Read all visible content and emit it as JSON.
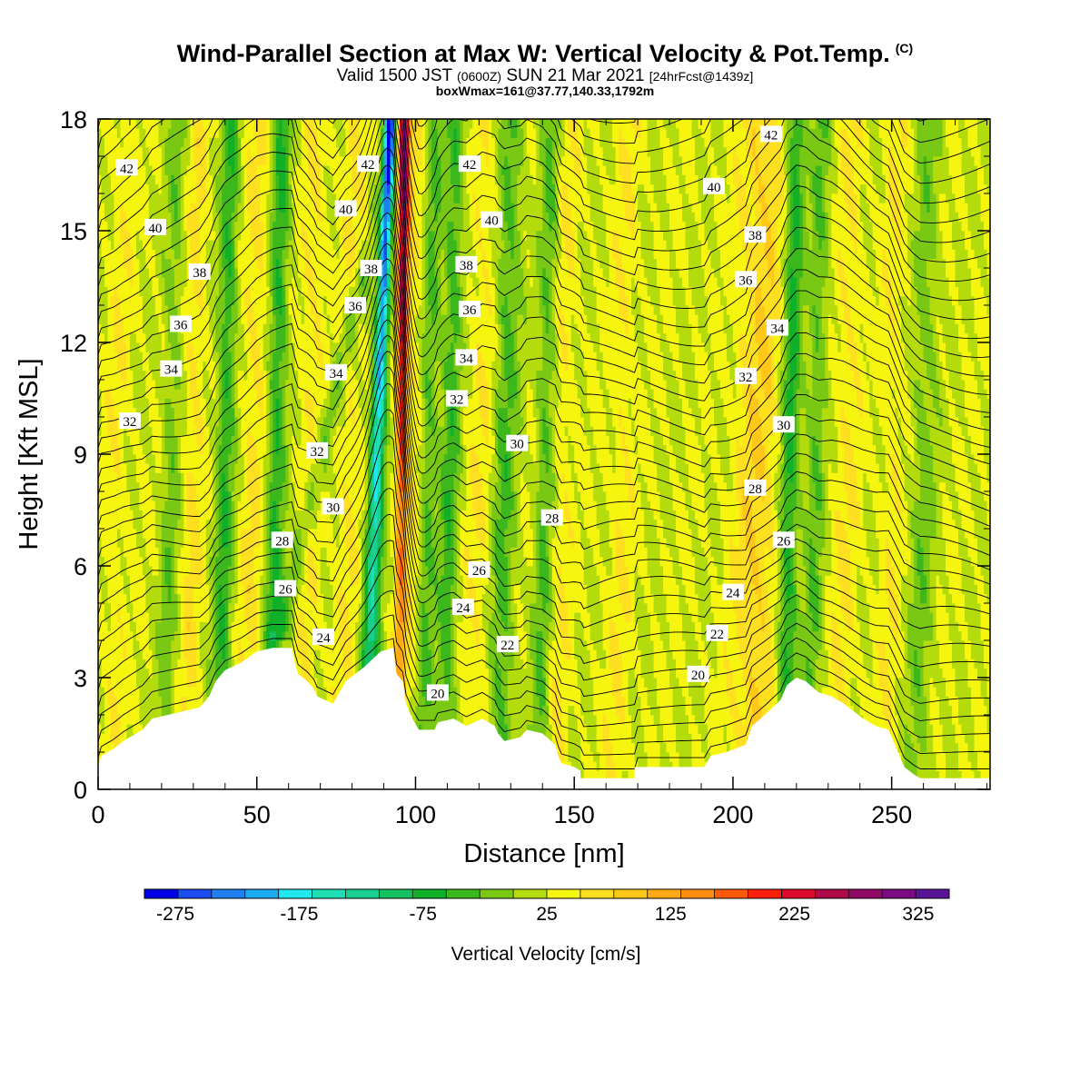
{
  "title": "Wind-Parallel Section at Max W: Vertical Velocity & Pot.Temp.",
  "copyright_mark": "(C)",
  "subtitle": {
    "valid": "Valid 1500 JST",
    "utc": "(0600Z)",
    "date": "SUN 21 Mar 2021",
    "forecast": "[24hrFcst@1439z]"
  },
  "subtitle2": "boxWmax=161@37.77,140.33,1792m",
  "chart_data": {
    "type": "heatmap",
    "xlabel": "Distance [nm]",
    "ylabel": "Height [Kft MSL]",
    "xlim": [
      0,
      281
    ],
    "ylim": [
      0,
      18
    ],
    "x_ticks": [
      0,
      50,
      100,
      150,
      200,
      250
    ],
    "y_ticks": [
      0,
      3,
      6,
      9,
      12,
      15,
      18
    ],
    "colorbar": {
      "label": "Vertical Velocity [cm/s]",
      "range": [
        -300,
        350
      ],
      "step": 25,
      "tick_values": [
        -275,
        -175,
        -75,
        25,
        125,
        225,
        325
      ],
      "colors": [
        "#0000e6",
        "#1a4cf0",
        "#1f7ff2",
        "#1eaaf0",
        "#20e8f0",
        "#1ce0b4",
        "#18d090",
        "#14c060",
        "#10b028",
        "#3cb81c",
        "#78c814",
        "#b4dc0c",
        "#f5f50f",
        "#ffe020",
        "#ffc818",
        "#ffaa14",
        "#ff8c10",
        "#ff5a0c",
        "#ff1e0a",
        "#dc0a28",
        "#b00a46",
        "#900a64",
        "#7a0a80",
        "#5a1496"
      ]
    },
    "terrain_kft": [
      [
        0,
        0.6
      ],
      [
        1,
        0.9
      ],
      [
        5,
        1.1
      ],
      [
        8,
        1.3
      ],
      [
        14,
        1.6
      ],
      [
        17,
        1.9
      ],
      [
        32,
        2.2
      ],
      [
        35,
        2.5
      ],
      [
        37,
        2.9
      ],
      [
        40,
        3.2
      ],
      [
        45,
        3.4
      ],
      [
        50,
        3.7
      ],
      [
        55,
        3.8
      ],
      [
        61,
        3.8
      ],
      [
        62,
        3.4
      ],
      [
        63,
        3.1
      ],
      [
        66,
        2.9
      ],
      [
        68,
        2.7
      ],
      [
        69,
        2.5
      ],
      [
        74,
        2.3
      ],
      [
        76,
        2.6
      ],
      [
        78,
        2.9
      ],
      [
        84,
        3.3
      ],
      [
        89,
        3.7
      ],
      [
        93,
        3.8
      ],
      [
        94,
        3.1
      ],
      [
        96,
        2.9
      ],
      [
        97,
        2.3
      ],
      [
        99,
        1.9
      ],
      [
        101,
        1.6
      ],
      [
        106,
        1.6
      ],
      [
        107,
        1.8
      ],
      [
        112,
        1.9
      ],
      [
        116,
        1.7
      ],
      [
        121,
        1.9
      ],
      [
        125,
        1.7
      ],
      [
        126,
        1.5
      ],
      [
        128,
        1.3
      ],
      [
        133,
        1.4
      ],
      [
        135,
        1.6
      ],
      [
        140,
        1.5
      ],
      [
        144,
        1.2
      ],
      [
        145,
        0.9
      ],
      [
        146,
        0.7
      ],
      [
        150,
        0.6
      ],
      [
        152,
        0.5
      ],
      [
        152,
        0.3
      ],
      [
        169,
        0.3
      ],
      [
        169,
        0.6
      ],
      [
        191,
        0.6
      ],
      [
        193,
        0.9
      ],
      [
        198,
        1.0
      ],
      [
        204,
        1.2
      ],
      [
        206,
        1.7
      ],
      [
        210,
        2.0
      ],
      [
        215,
        2.4
      ],
      [
        217,
        2.8
      ],
      [
        220,
        3.0
      ],
      [
        223,
        2.9
      ],
      [
        227,
        2.6
      ],
      [
        231,
        2.5
      ],
      [
        235,
        2.3
      ],
      [
        238,
        2.1
      ],
      [
        241,
        1.9
      ],
      [
        245,
        1.7
      ],
      [
        249,
        1.6
      ],
      [
        251,
        1.2
      ],
      [
        253,
        0.8
      ],
      [
        254,
        0.6
      ],
      [
        257,
        0.4
      ],
      [
        259,
        0.3
      ],
      [
        281,
        0.3
      ]
    ],
    "updraft_bands": [
      {
        "x": 6,
        "w": 4,
        "s": 0.22
      },
      {
        "x": 30,
        "w": 3,
        "s": 0.35
      },
      {
        "x": 49,
        "w": 4,
        "s": 0.35
      },
      {
        "x": 67,
        "w": 4,
        "s": 0.3
      },
      {
        "x": 79,
        "w": 4,
        "s": 0.28
      },
      {
        "x": 99,
        "w": 5,
        "s": 0.28
      },
      {
        "x": 121,
        "w": 5,
        "s": 0.28
      },
      {
        "x": 146,
        "w": 4,
        "s": 0.25
      },
      {
        "x": 165,
        "w": 4,
        "s": 0.25
      },
      {
        "x": 208,
        "w": 7,
        "s": 0.55
      },
      {
        "x": 236,
        "w": 4,
        "s": 0.3
      },
      {
        "x": 250,
        "w": 4,
        "s": 0.22
      }
    ],
    "downdraft_bands": [
      {
        "x": 23,
        "w": 3,
        "s": 0.35
      },
      {
        "x": 40,
        "w": 3,
        "s": 0.65
      },
      {
        "x": 56,
        "w": 3,
        "s": 0.7
      },
      {
        "x": 104,
        "w": 3,
        "s": 0.55
      },
      {
        "x": 111,
        "w": 3,
        "s": 0.6
      },
      {
        "x": 128,
        "w": 4,
        "s": 0.55
      },
      {
        "x": 141,
        "w": 3,
        "s": 0.5
      },
      {
        "x": 218,
        "w": 3,
        "s": 0.8
      },
      {
        "x": 226,
        "w": 3,
        "s": 0.45
      },
      {
        "x": 260,
        "w": 4,
        "s": 0.35
      }
    ],
    "jet_pair": {
      "down_x": 90,
      "up_x": 95
    },
    "isentrope_labels": [
      {
        "x": 9,
        "y": 16.7,
        "text": "42"
      },
      {
        "x": 18,
        "y": 15.1,
        "text": "40"
      },
      {
        "x": 32,
        "y": 13.9,
        "text": "38"
      },
      {
        "x": 26,
        "y": 12.5,
        "text": "36"
      },
      {
        "x": 23,
        "y": 11.3,
        "text": "34"
      },
      {
        "x": 10,
        "y": 9.9,
        "text": "32"
      },
      {
        "x": 85,
        "y": 16.8,
        "text": "42"
      },
      {
        "x": 78,
        "y": 15.6,
        "text": "40"
      },
      {
        "x": 86,
        "y": 14.0,
        "text": "38"
      },
      {
        "x": 81,
        "y": 13.0,
        "text": "36"
      },
      {
        "x": 75,
        "y": 11.2,
        "text": "34"
      },
      {
        "x": 69,
        "y": 9.1,
        "text": "32"
      },
      {
        "x": 74,
        "y": 7.6,
        "text": "30"
      },
      {
        "x": 58,
        "y": 6.7,
        "text": "28"
      },
      {
        "x": 59,
        "y": 5.4,
        "text": "26"
      },
      {
        "x": 71,
        "y": 4.1,
        "text": "24"
      },
      {
        "x": 117,
        "y": 16.8,
        "text": "42"
      },
      {
        "x": 124,
        "y": 15.3,
        "text": "40"
      },
      {
        "x": 116,
        "y": 14.1,
        "text": "38"
      },
      {
        "x": 117,
        "y": 12.9,
        "text": "36"
      },
      {
        "x": 116,
        "y": 11.6,
        "text": "34"
      },
      {
        "x": 113,
        "y": 10.5,
        "text": "32"
      },
      {
        "x": 132,
        "y": 9.3,
        "text": "30"
      },
      {
        "x": 143,
        "y": 7.3,
        "text": "28"
      },
      {
        "x": 120,
        "y": 5.9,
        "text": "26"
      },
      {
        "x": 115,
        "y": 4.9,
        "text": "24"
      },
      {
        "x": 129,
        "y": 3.9,
        "text": "22"
      },
      {
        "x": 107,
        "y": 2.6,
        "text": "20"
      },
      {
        "x": 212,
        "y": 17.6,
        "text": "42"
      },
      {
        "x": 194,
        "y": 16.2,
        "text": "40"
      },
      {
        "x": 207,
        "y": 14.9,
        "text": "38"
      },
      {
        "x": 204,
        "y": 13.7,
        "text": "36"
      },
      {
        "x": 214,
        "y": 12.4,
        "text": "34"
      },
      {
        "x": 204,
        "y": 11.1,
        "text": "32"
      },
      {
        "x": 216,
        "y": 9.8,
        "text": "30"
      },
      {
        "x": 207,
        "y": 8.1,
        "text": "28"
      },
      {
        "x": 216,
        "y": 6.7,
        "text": "26"
      },
      {
        "x": 200,
        "y": 5.3,
        "text": "24"
      },
      {
        "x": 195,
        "y": 4.2,
        "text": "22"
      },
      {
        "x": 189,
        "y": 3.1,
        "text": "20"
      }
    ]
  }
}
